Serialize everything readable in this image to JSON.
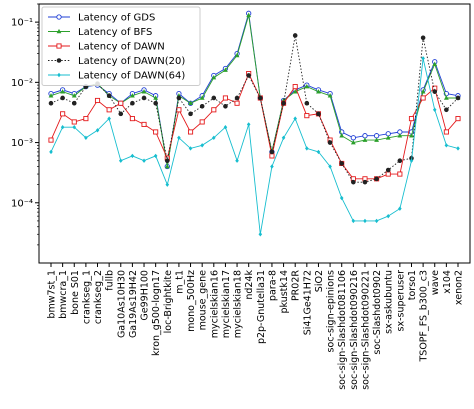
{
  "chart_data": {
    "type": "line",
    "yscale": "log",
    "ylim": [
      1e-05,
      0.2
    ],
    "grid": false,
    "legend_position": "upper-left",
    "categories": [
      "bmw7st_1",
      "bmwcra_1",
      "bone S01",
      "crankseg_1",
      "crankseg_2",
      "fullb",
      "Ga10As10H30",
      "Ga19As19H42",
      "Ge99H100",
      "kron_g500-logn17",
      "loc-Brightkite",
      "m_t1",
      "mono_500Hz",
      "mouse_gene",
      "mycielskian16",
      "mycielskian17",
      "mycielskian18",
      "nd24k",
      "p2p-Gnutella31",
      "para-8",
      "pkustk14",
      "PR02R",
      "Si41Ge41H72",
      "SiO2",
      "soc-sign-epinions",
      "soc-sign-Slashdot081106",
      "soc-sign-Slashdot090216",
      "soc-sign-Slashdot090221",
      "soc-Slashdot0902",
      "sx-askubuntu",
      "sx-superuser",
      "torso1",
      "TSOPF_FS_b300_c3",
      "wave",
      "x104",
      "xenon2"
    ],
    "tick_labels": [
      "bmw7st_1",
      "bmwcra_1",
      "bone S01",
      "crankseg_1",
      "crankseg_2",
      "fullb",
      "Ga10As10H30",
      "Ga19As19H42",
      "Ge99H100",
      "kron_g500-logn17",
      "loc-Brightkite",
      "m_t1",
      "mono_500Hz",
      "mouse_gene",
      "mycielskian16",
      "mycielskian17",
      "mycielskian18",
      "nd24k",
      "p2p-Gnutella31",
      "para-8",
      "pkustk14",
      "PR02R",
      "Si41Ge41H72",
      "SiO2",
      "soc-sign-epinions",
      "soc-sign-Slashdot081106",
      "soc-sign-Slashdot090216",
      "soc-sign-Slashdot090221",
      "soc-Slashdot0902",
      "sx-askubuntu",
      "sx-superuser",
      "torso1",
      "TSOPF_FS_b300_c3",
      "wave",
      "x104",
      "xenon2"
    ],
    "y_ticks": [
      {
        "value": 0.0001,
        "label": "10⁻⁴"
      },
      {
        "value": 0.001,
        "label": "10⁻³"
      },
      {
        "value": 0.01,
        "label": "10⁻²"
      },
      {
        "value": 0.1,
        "label": "10⁻¹"
      }
    ],
    "series": [
      {
        "name": "Latency of GDS",
        "color": "#1f3fd6",
        "linestyle": "solid",
        "marker": "circle-open",
        "values": [
          0.0065,
          0.0075,
          0.0065,
          0.0085,
          0.009,
          0.0065,
          0.0045,
          0.0065,
          0.0075,
          0.006,
          0.0004,
          0.0065,
          0.0045,
          0.006,
          0.013,
          0.017,
          0.03,
          0.14,
          0.0055,
          0.0007,
          0.005,
          0.0075,
          0.009,
          0.0075,
          0.0065,
          0.0015,
          0.0012,
          0.0013,
          0.0013,
          0.0014,
          0.0015,
          0.0015,
          0.0075,
          0.022,
          0.0065,
          0.006
        ]
      },
      {
        "name": "Latency of BFS",
        "color": "#2ca02c",
        "linestyle": "solid",
        "marker": "triangle",
        "values": [
          0.006,
          0.007,
          0.006,
          0.0085,
          0.0095,
          0.006,
          0.0045,
          0.006,
          0.007,
          0.0055,
          0.0004,
          0.006,
          0.0045,
          0.0055,
          0.012,
          0.016,
          0.028,
          0.13,
          0.0055,
          0.0007,
          0.005,
          0.007,
          0.0085,
          0.007,
          0.006,
          0.0013,
          0.001,
          0.0011,
          0.0011,
          0.0012,
          0.0013,
          0.0013,
          0.007,
          0.02,
          0.0055,
          0.0055
        ]
      },
      {
        "name": "Latency of DAWN",
        "color": "#e41a1c",
        "linestyle": "solid",
        "marker": "square-open",
        "values": [
          0.0011,
          0.003,
          0.0022,
          0.0025,
          0.005,
          0.0035,
          0.0045,
          0.0025,
          0.002,
          0.0015,
          0.00055,
          0.0035,
          0.0015,
          0.0022,
          0.0035,
          0.0055,
          0.0045,
          0.014,
          0.0055,
          0.0006,
          0.0045,
          0.0085,
          0.0028,
          0.003,
          0.0011,
          0.00045,
          0.00025,
          0.00025,
          0.00025,
          0.0003,
          0.0003,
          0.0025,
          0.0055,
          0.008,
          0.0015,
          0.0025
        ]
      },
      {
        "name": "Latency of DAWN(20)",
        "color": "#222222",
        "linestyle": "dotted",
        "marker": "circle",
        "values": [
          0.0045,
          0.0055,
          0.0045,
          0.0085,
          0.0095,
          0.006,
          0.003,
          0.0045,
          0.0055,
          0.0045,
          0.0005,
          0.0055,
          0.003,
          0.004,
          0.0055,
          0.004,
          0.0055,
          0.013,
          0.0055,
          0.0007,
          0.0045,
          0.06,
          0.0045,
          0.003,
          0.001,
          0.00045,
          0.00022,
          0.00022,
          0.00025,
          0.00035,
          0.0005,
          0.00055,
          0.055,
          0.007,
          0.0035,
          0.0055
        ]
      },
      {
        "name": "Latency of DAWN(64)",
        "color": "#17becf",
        "linestyle": "solid",
        "marker": "diamond",
        "values": [
          0.0007,
          0.0018,
          0.0018,
          0.0012,
          0.0016,
          0.0025,
          0.0005,
          0.0006,
          0.0005,
          0.0006,
          0.0002,
          0.0012,
          0.0008,
          0.0009,
          0.0012,
          0.0018,
          0.0005,
          0.002,
          3e-05,
          0.0004,
          0.0012,
          0.0025,
          0.0008,
          0.0007,
          0.0004,
          0.00012,
          5e-05,
          5e-05,
          5e-05,
          6e-05,
          8e-05,
          0.0005,
          0.025,
          0.0035,
          0.0009,
          0.0008
        ]
      }
    ]
  }
}
